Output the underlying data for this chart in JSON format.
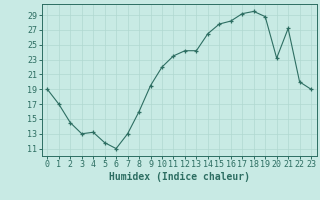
{
  "x": [
    0,
    1,
    2,
    3,
    4,
    5,
    6,
    7,
    8,
    9,
    10,
    11,
    12,
    13,
    14,
    15,
    16,
    17,
    18,
    19,
    20,
    21,
    22,
    23
  ],
  "y": [
    19,
    17,
    14.5,
    13,
    13.2,
    11.8,
    11.0,
    13.0,
    16.0,
    19.5,
    22.0,
    23.5,
    24.2,
    24.2,
    26.5,
    27.8,
    28.2,
    29.2,
    29.5,
    28.8,
    23.2,
    27.2,
    20.0,
    19.0
  ],
  "bg_color": "#c8eae4",
  "grid_major_color": "#b0d8d0",
  "grid_minor_color": "#b0d8d0",
  "line_color": "#2d6e62",
  "marker_color": "#2d6e62",
  "xlabel": "Humidex (Indice chaleur)",
  "xlabel_fontsize": 7,
  "tick_fontsize": 6,
  "yticks": [
    11,
    13,
    15,
    17,
    19,
    21,
    23,
    25,
    27,
    29
  ],
  "xtick_labels": [
    "0",
    "1",
    "2",
    "3",
    "4",
    "5",
    "6",
    "7",
    "8",
    "9",
    "10",
    "11",
    "12",
    "13",
    "14",
    "15",
    "16",
    "17",
    "18",
    "19",
    "20",
    "21",
    "22",
    "23"
  ],
  "ylim": [
    10.0,
    30.5
  ],
  "xlim": [
    -0.5,
    23.5
  ]
}
